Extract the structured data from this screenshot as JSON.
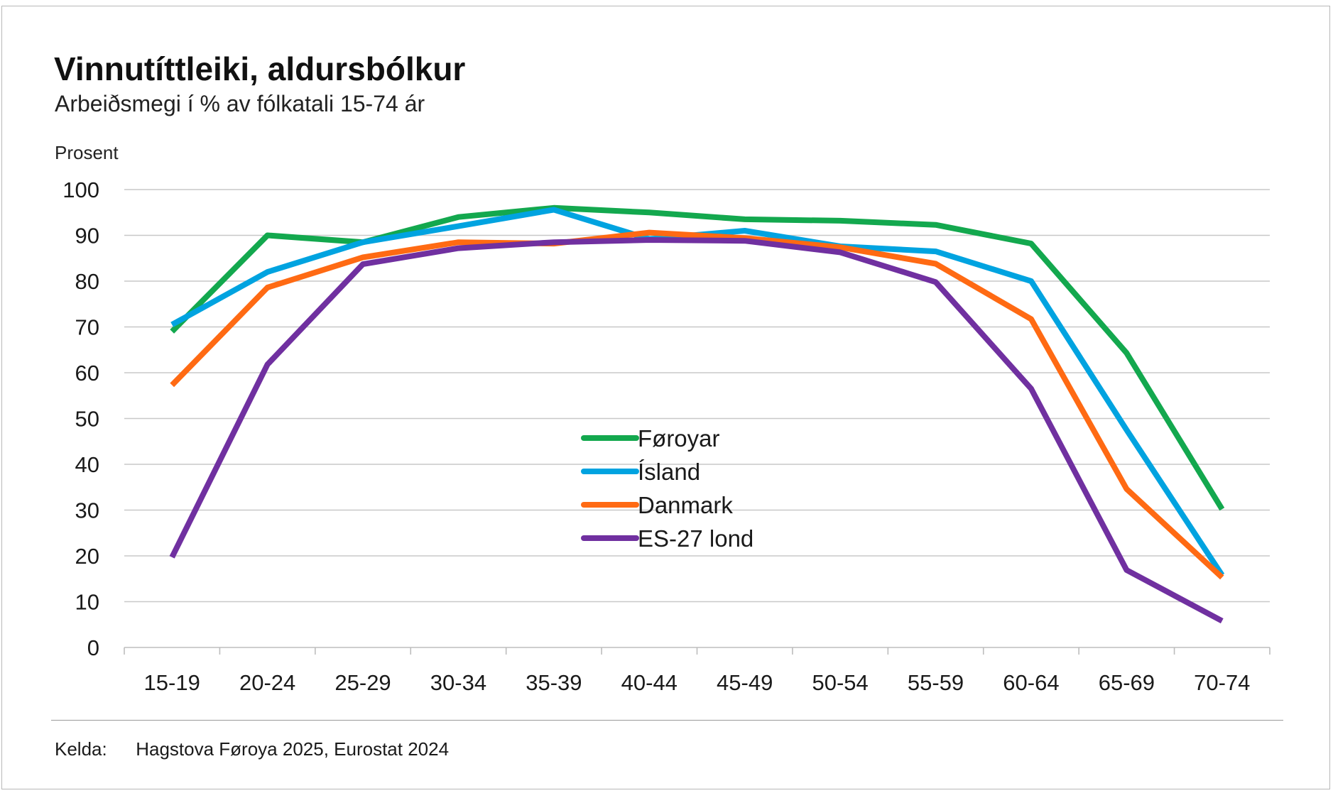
{
  "header": {
    "title": "Vinnutíttleiki, aldursbólkur",
    "subtitle": "Arbeiðsmegi í % av fólkatali 15-74 ár"
  },
  "footer": {
    "source_label": "Kelda:",
    "source_text": "Hagstova Føroya 2025, Eurostat 2024"
  },
  "chart_data": {
    "type": "line",
    "title": "Vinnutíttleiki, aldursbólkur",
    "subtitle": "Arbeiðsmegi í % av fólkatali 15-74 ár",
    "xlabel": "",
    "ylabel": "Prosent",
    "ylim": [
      0,
      100
    ],
    "yticks": [
      0,
      10,
      20,
      30,
      40,
      50,
      60,
      70,
      80,
      90,
      100
    ],
    "grid": true,
    "legend_position": "center",
    "categories": [
      "15-19",
      "20-24",
      "25-29",
      "30-34",
      "35-39",
      "40-44",
      "45-49",
      "50-54",
      "55-59",
      "60-64",
      "65-69",
      "70-74"
    ],
    "series": [
      {
        "name": "Føroyar",
        "color": "#13a84e",
        "values": [
          69,
          90,
          88.5,
          94,
          96,
          95,
          93.5,
          93.2,
          92.3,
          88.2,
          64.3,
          30.2
        ]
      },
      {
        "name": "Ísland",
        "color": "#00a3e0",
        "values": [
          70.5,
          82,
          88.5,
          92,
          95.6,
          89.2,
          91,
          87.6,
          86.5,
          80,
          47.5,
          15.8
        ]
      },
      {
        "name": "Danmark",
        "color": "#ff6a13",
        "values": [
          57.3,
          78.6,
          85.2,
          88.5,
          88.2,
          90.6,
          89.4,
          87.4,
          83.8,
          71.7,
          34.6,
          15.3
        ]
      },
      {
        "name": "ES-27 lond",
        "color": "#7030a0",
        "values": [
          19.7,
          61.8,
          83.7,
          87.2,
          88.5,
          89,
          88.8,
          86.3,
          79.8,
          56.5,
          16.9,
          5.8
        ]
      }
    ]
  }
}
